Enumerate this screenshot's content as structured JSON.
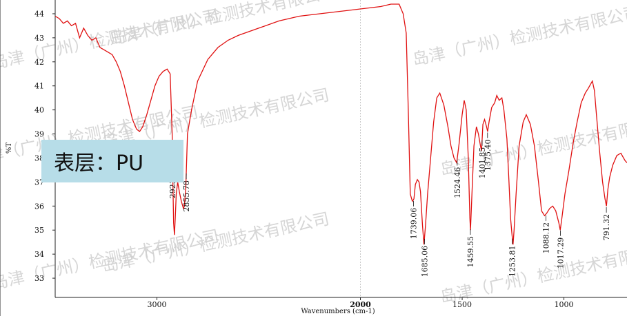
{
  "chart_data": {
    "type": "line",
    "title": "",
    "xlabel": "Wavenumbers (cm-1)",
    "ylabel": "%T",
    "xlim": [
      3500,
      690
    ],
    "ylim": [
      32.2,
      44.4
    ],
    "x_ticks": [
      {
        "value": 3000,
        "label": "3000",
        "bold": false
      },
      {
        "value": 2000,
        "label": "2000",
        "bold": true
      },
      {
        "value": 1500,
        "label": "1500",
        "bold": false
      },
      {
        "value": 1000,
        "label": "1000",
        "bold": false
      }
    ],
    "y_ticks": [
      33,
      34,
      35,
      36,
      37,
      38,
      39,
      40,
      41,
      42,
      43,
      44
    ],
    "grid": "single vertical dashed line at 2000",
    "line_color": "#e01010",
    "series": [
      {
        "values": [
          [
            3500,
            43.9
          ],
          [
            3480,
            43.8
          ],
          [
            3460,
            43.6
          ],
          [
            3440,
            43.7
          ],
          [
            3420,
            43.5
          ],
          [
            3400,
            43.6
          ],
          [
            3380,
            43.0
          ],
          [
            3360,
            43.4
          ],
          [
            3340,
            43.1
          ],
          [
            3320,
            42.9
          ],
          [
            3300,
            43.0
          ],
          [
            3280,
            42.6
          ],
          [
            3260,
            42.5
          ],
          [
            3240,
            42.4
          ],
          [
            3220,
            42.3
          ],
          [
            3200,
            42.0
          ],
          [
            3180,
            41.6
          ],
          [
            3160,
            41.0
          ],
          [
            3140,
            40.3
          ],
          [
            3120,
            39.6
          ],
          [
            3100,
            39.2
          ],
          [
            3085,
            39.1
          ],
          [
            3070,
            39.3
          ],
          [
            3050,
            39.8
          ],
          [
            3030,
            40.4
          ],
          [
            3010,
            41.0
          ],
          [
            2990,
            41.4
          ],
          [
            2970,
            41.6
          ],
          [
            2950,
            41.7
          ],
          [
            2935,
            41.5
          ],
          [
            2925,
            39.0
          ],
          [
            2922,
            37.2
          ],
          [
            2918,
            35.3
          ],
          [
            2914,
            34.8
          ],
          [
            2910,
            35.5
          ],
          [
            2905,
            36.5
          ],
          [
            2898,
            37.0
          ],
          [
            2890,
            36.6
          ],
          [
            2880,
            36.2
          ],
          [
            2870,
            35.9
          ],
          [
            2865,
            36.0
          ],
          [
            2858,
            36.8
          ],
          [
            2850,
            39.0
          ],
          [
            2840,
            39.5
          ],
          [
            2830,
            40.0
          ],
          [
            2800,
            41.2
          ],
          [
            2750,
            42.1
          ],
          [
            2700,
            42.6
          ],
          [
            2650,
            42.9
          ],
          [
            2600,
            43.1
          ],
          [
            2500,
            43.4
          ],
          [
            2400,
            43.7
          ],
          [
            2300,
            43.9
          ],
          [
            2200,
            44.0
          ],
          [
            2100,
            44.1
          ],
          [
            2000,
            44.2
          ],
          [
            1900,
            44.3
          ],
          [
            1850,
            44.4
          ],
          [
            1810,
            44.4
          ],
          [
            1790,
            44.0
          ],
          [
            1775,
            43.2
          ],
          [
            1765,
            40.0
          ],
          [
            1755,
            36.5
          ],
          [
            1745,
            36.2
          ],
          [
            1737,
            36.3
          ],
          [
            1730,
            36.9
          ],
          [
            1720,
            37.1
          ],
          [
            1712,
            37.0
          ],
          [
            1705,
            36.6
          ],
          [
            1695,
            35.2
          ],
          [
            1688,
            34.4
          ],
          [
            1680,
            35.2
          ],
          [
            1670,
            36.5
          ],
          [
            1655,
            38.0
          ],
          [
            1640,
            39.5
          ],
          [
            1625,
            40.5
          ],
          [
            1610,
            40.7
          ],
          [
            1590,
            40.2
          ],
          [
            1570,
            39.3
          ],
          [
            1555,
            38.5
          ],
          [
            1540,
            38.0
          ],
          [
            1527,
            37.8
          ],
          [
            1515,
            38.6
          ],
          [
            1500,
            39.8
          ],
          [
            1490,
            40.4
          ],
          [
            1480,
            40.0
          ],
          [
            1470,
            38.0
          ],
          [
            1462,
            35.5
          ],
          [
            1459,
            35.0
          ],
          [
            1452,
            36.5
          ],
          [
            1442,
            38.5
          ],
          [
            1430,
            39.3
          ],
          [
            1420,
            39.0
          ],
          [
            1410,
            38.5
          ],
          [
            1405,
            38.3
          ],
          [
            1398,
            39.4
          ],
          [
            1390,
            39.6
          ],
          [
            1380,
            39.3
          ],
          [
            1375,
            39.1
          ],
          [
            1368,
            39.5
          ],
          [
            1355,
            40.1
          ],
          [
            1340,
            40.3
          ],
          [
            1330,
            40.6
          ],
          [
            1318,
            40.4
          ],
          [
            1305,
            40.5
          ],
          [
            1295,
            40.0
          ],
          [
            1280,
            38.8
          ],
          [
            1270,
            37.0
          ],
          [
            1262,
            35.5
          ],
          [
            1255,
            34.8
          ],
          [
            1250,
            34.4
          ],
          [
            1245,
            35.0
          ],
          [
            1235,
            36.5
          ],
          [
            1220,
            38.5
          ],
          [
            1200,
            39.5
          ],
          [
            1185,
            39.8
          ],
          [
            1165,
            39.4
          ],
          [
            1145,
            38.5
          ],
          [
            1125,
            37.0
          ],
          [
            1110,
            35.8
          ],
          [
            1095,
            35.6
          ],
          [
            1085,
            35.7
          ],
          [
            1070,
            35.9
          ],
          [
            1055,
            36.0
          ],
          [
            1040,
            35.8
          ],
          [
            1025,
            35.3
          ],
          [
            1018,
            35.0
          ],
          [
            1010,
            35.5
          ],
          [
            995,
            36.5
          ],
          [
            975,
            37.5
          ],
          [
            955,
            38.6
          ],
          [
            935,
            39.5
          ],
          [
            915,
            40.3
          ],
          [
            895,
            40.7
          ],
          [
            880,
            40.9
          ],
          [
            860,
            41.2
          ],
          [
            850,
            40.8
          ],
          [
            840,
            39.8
          ],
          [
            825,
            38.3
          ],
          [
            810,
            37.0
          ],
          [
            798,
            36.3
          ],
          [
            791,
            36.0
          ],
          [
            784,
            36.7
          ],
          [
            775,
            37.2
          ],
          [
            760,
            37.7
          ],
          [
            740,
            38.1
          ],
          [
            720,
            38.2
          ],
          [
            700,
            37.9
          ],
          [
            690,
            37.8
          ]
        ]
      }
    ],
    "peak_labels": [
      {
        "x": 2923.27,
        "label": "2923.27"
      },
      {
        "x": 2855.78,
        "label": "2855.78"
      },
      {
        "x": 1739.06,
        "label": "1739.06"
      },
      {
        "x": 1685.06,
        "label": "1685.06"
      },
      {
        "x": 1524.46,
        "label": "1524.46"
      },
      {
        "x": 1459.55,
        "label": "1459.55"
      },
      {
        "x": 1401.85,
        "label": "1401.85"
      },
      {
        "x": 1375.4,
        "label": "1375.40"
      },
      {
        "x": 1253.81,
        "label": "1253.81"
      },
      {
        "x": 1088.12,
        "label": "1088.12"
      },
      {
        "x": 1017.29,
        "label": "1017.29"
      },
      {
        "x": 791.32,
        "label": "791.32"
      }
    ]
  },
  "sample_label": "表层：PU",
  "watermark_text": "岛津（广州）检测技术有限公司"
}
